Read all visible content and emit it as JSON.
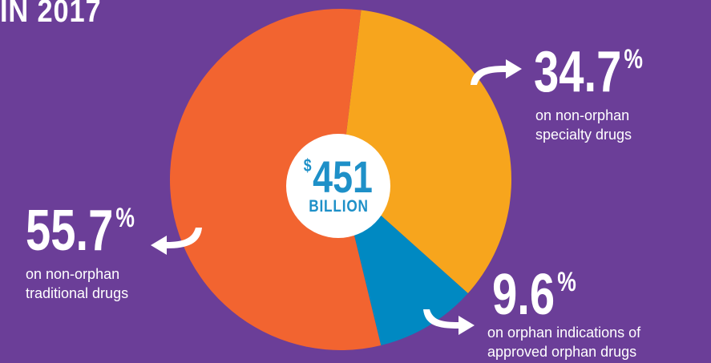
{
  "title": "IN 2017",
  "center": {
    "currency": "$",
    "amount": "451",
    "unit": "BILLION"
  },
  "chart_data": {
    "type": "pie",
    "total_label": "$451 BILLION",
    "slices": [
      {
        "value": 34.7,
        "pct_text": "34.7",
        "pct_symbol": "%",
        "label_line1": "on non-orphan",
        "label_line2": "specialty drugs",
        "color": "#f7a51d"
      },
      {
        "value": 9.6,
        "pct_text": "9.6",
        "pct_symbol": "%",
        "label_line1": "on orphan indications of",
        "label_line2": "approved orphan drugs",
        "color": "#0089c2"
      },
      {
        "value": 55.7,
        "pct_text": "55.7",
        "pct_symbol": "%",
        "label_line1": "on non-orphan",
        "label_line2": "traditional drugs",
        "color": "#f26430"
      }
    ]
  },
  "colors": {
    "background": "#6b3e98",
    "arrow": "#ffffff",
    "badge_text": "#1e90c8"
  }
}
